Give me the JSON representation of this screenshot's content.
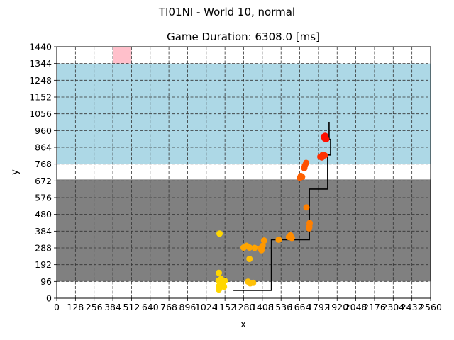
{
  "chart_data": {
    "type": "scatter",
    "suptitle": "TI01NI - World 10, normal",
    "title": "Game Duration: 6308.0 [ms]",
    "xlabel": "x",
    "ylabel": "y",
    "xlim": [
      0,
      2560
    ],
    "ylim": [
      0,
      1440
    ],
    "xticks": [
      0,
      128,
      256,
      384,
      512,
      640,
      768,
      896,
      1024,
      1152,
      1280,
      1408,
      1536,
      1664,
      1792,
      1920,
      2048,
      2176,
      2304,
      2432,
      2560
    ],
    "xtick_labels": [
      "0",
      "128",
      "256",
      "384",
      "512",
      "640",
      "768",
      "896",
      "1024",
      "1152",
      "1280",
      "1408",
      "1536",
      "1664",
      "1792",
      "1920",
      "2048",
      "2176",
      "2304",
      "2432",
      "2560"
    ],
    "yticks": [
      0,
      96,
      192,
      288,
      384,
      480,
      576,
      672,
      768,
      864,
      960,
      1056,
      1152,
      1248,
      1344,
      1440
    ],
    "ytick_labels": [
      "0",
      "96",
      "192",
      "288",
      "384",
      "480",
      "576",
      "672",
      "768",
      "864",
      "960",
      "1056",
      "1152",
      "1248",
      "1344",
      "1440"
    ],
    "grid": true,
    "regions": [
      {
        "name": "gray-zone",
        "x": [
          0,
          2560
        ],
        "y": [
          96,
          680
        ],
        "color": "#808080"
      },
      {
        "name": "blue-zone",
        "x": [
          0,
          2560
        ],
        "y": [
          770,
          1344
        ],
        "color": "#add8e6"
      },
      {
        "name": "pink-target",
        "x": [
          384,
          512
        ],
        "y": [
          1344,
          1440
        ],
        "color": "#ffc0cb"
      }
    ],
    "path": {
      "color": "#000000",
      "points": [
        [
          1210,
          45
        ],
        [
          1470,
          45
        ],
        [
          1470,
          335
        ],
        [
          1730,
          335
        ],
        [
          1730,
          625
        ],
        [
          1855,
          625
        ],
        [
          1855,
          820
        ],
        [
          1875,
          820
        ],
        [
          1875,
          910
        ],
        [
          1865,
          910
        ],
        [
          1865,
          1010
        ]
      ]
    },
    "points": [
      {
        "x": 1110,
        "y": 50,
        "color": "#ffd700"
      },
      {
        "x": 1112,
        "y": 70,
        "color": "#ffd700"
      },
      {
        "x": 1108,
        "y": 100,
        "color": "#ffd700"
      },
      {
        "x": 1140,
        "y": 80,
        "color": "#ffd700"
      },
      {
        "x": 1150,
        "y": 100,
        "color": "#ffd700"
      },
      {
        "x": 1145,
        "y": 65,
        "color": "#ffd700"
      },
      {
        "x": 1125,
        "y": 110,
        "color": "#ffd700"
      },
      {
        "x": 1110,
        "y": 145,
        "color": "#ffd700"
      },
      {
        "x": 1115,
        "y": 370,
        "color": "#ffd700"
      },
      {
        "x": 1310,
        "y": 95,
        "color": "#ffc107"
      },
      {
        "x": 1325,
        "y": 85,
        "color": "#ffc107"
      },
      {
        "x": 1345,
        "y": 88,
        "color": "#ffc107"
      },
      {
        "x": 1320,
        "y": 225,
        "color": "#ffc107"
      },
      {
        "x": 1280,
        "y": 290,
        "color": "#ffa500"
      },
      {
        "x": 1300,
        "y": 300,
        "color": "#ffa500"
      },
      {
        "x": 1320,
        "y": 290,
        "color": "#ffa500"
      },
      {
        "x": 1355,
        "y": 288,
        "color": "#ffa500"
      },
      {
        "x": 1395,
        "y": 285,
        "color": "#ff9800"
      },
      {
        "x": 1410,
        "y": 300,
        "color": "#ff9800"
      },
      {
        "x": 1420,
        "y": 330,
        "color": "#ff9800"
      },
      {
        "x": 1402,
        "y": 275,
        "color": "#ff9800"
      },
      {
        "x": 1520,
        "y": 335,
        "color": "#ff9800"
      },
      {
        "x": 1590,
        "y": 350,
        "color": "#ff8c00"
      },
      {
        "x": 1600,
        "y": 360,
        "color": "#ff8c00"
      },
      {
        "x": 1610,
        "y": 345,
        "color": "#ff8c00"
      },
      {
        "x": 1730,
        "y": 410,
        "color": "#ff7f00"
      },
      {
        "x": 1732,
        "y": 430,
        "color": "#ff7f00"
      },
      {
        "x": 1728,
        "y": 400,
        "color": "#ff7f00"
      },
      {
        "x": 1710,
        "y": 520,
        "color": "#ff7f00"
      },
      {
        "x": 1665,
        "y": 690,
        "color": "#ff6000"
      },
      {
        "x": 1672,
        "y": 700,
        "color": "#ff6000"
      },
      {
        "x": 1680,
        "y": 695,
        "color": "#ff6000"
      },
      {
        "x": 1700,
        "y": 760,
        "color": "#ff5000"
      },
      {
        "x": 1695,
        "y": 745,
        "color": "#ff5000"
      },
      {
        "x": 1708,
        "y": 775,
        "color": "#ff5000"
      },
      {
        "x": 1805,
        "y": 810,
        "color": "#ff3000"
      },
      {
        "x": 1820,
        "y": 820,
        "color": "#ff3000"
      },
      {
        "x": 1835,
        "y": 818,
        "color": "#ff3000"
      },
      {
        "x": 1815,
        "y": 806,
        "color": "#ff3000"
      },
      {
        "x": 1828,
        "y": 925,
        "color": "#ff1000"
      },
      {
        "x": 1835,
        "y": 915,
        "color": "#ff1000"
      },
      {
        "x": 1845,
        "y": 910,
        "color": "#ff1000"
      },
      {
        "x": 1838,
        "y": 930,
        "color": "#ff1000"
      }
    ]
  }
}
